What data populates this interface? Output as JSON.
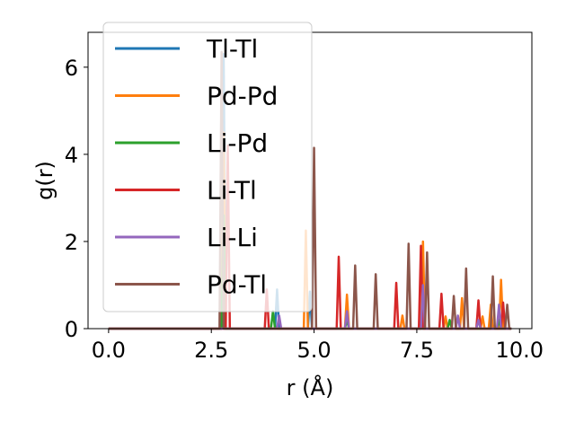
{
  "chart_data": {
    "type": "line",
    "title": "",
    "xlabel": "r (Å)",
    "ylabel": "g(r)",
    "xlim": [
      -0.5,
      10.3
    ],
    "ylim": [
      0,
      6.8
    ],
    "x_ticks": [
      0.0,
      2.5,
      5.0,
      7.5,
      10.0
    ],
    "x_tick_labels": [
      "0.0",
      "2.5",
      "5.0",
      "7.5",
      "10.0"
    ],
    "y_ticks": [
      0,
      2,
      4,
      6
    ],
    "y_tick_labels": [
      "0",
      "2",
      "4",
      "6"
    ],
    "grid": false,
    "legend_position": "upper-left",
    "series": [
      {
        "name": "Tl-Tl",
        "color": "#1f77b4",
        "points": [
          [
            0,
            0
          ],
          [
            2.75,
            0
          ],
          [
            2.8,
            6.3
          ],
          [
            2.85,
            0
          ],
          [
            4.05,
            0
          ],
          [
            4.1,
            0.9
          ],
          [
            4.15,
            0
          ],
          [
            4.85,
            0
          ],
          [
            4.9,
            0.85
          ],
          [
            4.95,
            0
          ],
          [
            9.8,
            0
          ]
        ]
      },
      {
        "name": "Pd-Pd",
        "color": "#ff7f0e",
        "points": [
          [
            0,
            0
          ],
          [
            2.75,
            0
          ],
          [
            2.8,
            4.5
          ],
          [
            2.85,
            0
          ],
          [
            4.75,
            0
          ],
          [
            4.8,
            2.25
          ],
          [
            4.85,
            0
          ],
          [
            5.75,
            0
          ],
          [
            5.8,
            0.78
          ],
          [
            5.85,
            0
          ],
          [
            7.1,
            0
          ],
          [
            7.15,
            0.3
          ],
          [
            7.2,
            0
          ],
          [
            7.6,
            0
          ],
          [
            7.65,
            2.0
          ],
          [
            7.7,
            0
          ],
          [
            8.15,
            0
          ],
          [
            8.2,
            0.28
          ],
          [
            8.25,
            0
          ],
          [
            8.55,
            0
          ],
          [
            8.6,
            0.7
          ],
          [
            8.65,
            0
          ],
          [
            9.05,
            0
          ],
          [
            9.1,
            0.28
          ],
          [
            9.15,
            0
          ],
          [
            9.25,
            0
          ],
          [
            9.3,
            0.55
          ],
          [
            9.35,
            0
          ],
          [
            9.5,
            0
          ],
          [
            9.55,
            1.12
          ],
          [
            9.6,
            0
          ],
          [
            9.8,
            0
          ]
        ]
      },
      {
        "name": "Li-Pd",
        "color": "#2ca02c",
        "points": [
          [
            0,
            0
          ],
          [
            2.75,
            0
          ],
          [
            2.8,
            2.6
          ],
          [
            2.85,
            0
          ],
          [
            3.95,
            0
          ],
          [
            4.0,
            0.4
          ],
          [
            4.05,
            0
          ],
          [
            5.75,
            0
          ],
          [
            5.8,
            0.2
          ],
          [
            5.85,
            0
          ],
          [
            7.6,
            0
          ],
          [
            7.65,
            0.3
          ],
          [
            7.7,
            0
          ],
          [
            8.25,
            0
          ],
          [
            8.3,
            0.2
          ],
          [
            8.35,
            0
          ],
          [
            9.45,
            0
          ],
          [
            9.5,
            0.2
          ],
          [
            9.55,
            0
          ],
          [
            9.8,
            0
          ]
        ]
      },
      {
        "name": "Li-Tl",
        "color": "#d62728",
        "points": [
          [
            0,
            0
          ],
          [
            2.85,
            0
          ],
          [
            2.9,
            4.2
          ],
          [
            2.95,
            0
          ],
          [
            3.8,
            0
          ],
          [
            3.85,
            0.9
          ],
          [
            3.9,
            0
          ],
          [
            5.55,
            0
          ],
          [
            5.6,
            1.65
          ],
          [
            5.65,
            0
          ],
          [
            6.95,
            0
          ],
          [
            7.0,
            1.05
          ],
          [
            7.05,
            0
          ],
          [
            7.55,
            0
          ],
          [
            7.6,
            1.9
          ],
          [
            7.65,
            0
          ],
          [
            8.05,
            0
          ],
          [
            8.1,
            0.8
          ],
          [
            8.15,
            0
          ],
          [
            8.95,
            0
          ],
          [
            9.0,
            0.65
          ],
          [
            9.05,
            0
          ],
          [
            9.55,
            0
          ],
          [
            9.6,
            0.6
          ],
          [
            9.65,
            0
          ],
          [
            9.8,
            0
          ]
        ]
      },
      {
        "name": "Li-Li",
        "color": "#9467bd",
        "points": [
          [
            0,
            0
          ],
          [
            4.1,
            0
          ],
          [
            4.15,
            0.3
          ],
          [
            4.2,
            0
          ],
          [
            5.75,
            0
          ],
          [
            5.8,
            0.4
          ],
          [
            5.85,
            0
          ],
          [
            7.6,
            0
          ],
          [
            7.65,
            1.0
          ],
          [
            7.7,
            0
          ],
          [
            8.45,
            0
          ],
          [
            8.5,
            0.3
          ],
          [
            8.55,
            0
          ],
          [
            8.95,
            0
          ],
          [
            9.0,
            0.2
          ],
          [
            9.05,
            0
          ],
          [
            9.45,
            0
          ],
          [
            9.5,
            0.55
          ],
          [
            9.55,
            0
          ],
          [
            9.8,
            0
          ]
        ]
      },
      {
        "name": "Pd-Tl",
        "color": "#8c564b",
        "points": [
          [
            0,
            0
          ],
          [
            2.7,
            0
          ],
          [
            2.75,
            6.35
          ],
          [
            2.8,
            0
          ],
          [
            4.95,
            0
          ],
          [
            5.0,
            4.15
          ],
          [
            5.05,
            0
          ],
          [
            5.95,
            0
          ],
          [
            6.0,
            1.45
          ],
          [
            6.05,
            0
          ],
          [
            6.45,
            0
          ],
          [
            6.5,
            1.25
          ],
          [
            6.55,
            0
          ],
          [
            7.25,
            0
          ],
          [
            7.3,
            1.95
          ],
          [
            7.35,
            0
          ],
          [
            7.7,
            0
          ],
          [
            7.75,
            1.75
          ],
          [
            7.8,
            0
          ],
          [
            8.35,
            0
          ],
          [
            8.4,
            0.75
          ],
          [
            8.45,
            0
          ],
          [
            8.65,
            0
          ],
          [
            8.7,
            1.38
          ],
          [
            8.75,
            0
          ],
          [
            9.3,
            0
          ],
          [
            9.35,
            1.2
          ],
          [
            9.4,
            0
          ],
          [
            9.65,
            0
          ],
          [
            9.7,
            0.55
          ],
          [
            9.75,
            0
          ],
          [
            9.8,
            0
          ]
        ]
      }
    ]
  }
}
